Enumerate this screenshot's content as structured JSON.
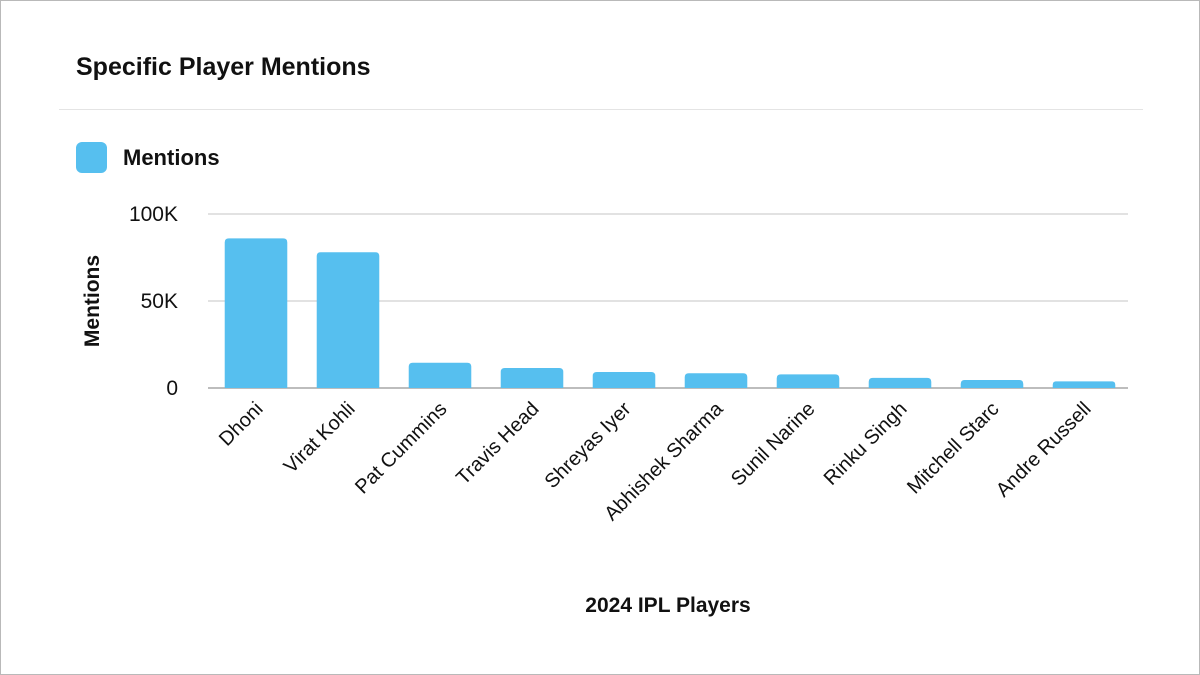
{
  "card": {
    "title": "Specific Player Mentions"
  },
  "colors": {
    "bar": "#56BFEF",
    "grid": "#d9d9d9",
    "axis": "#bdbdbd",
    "text": "#111111"
  },
  "chart_data": {
    "type": "bar",
    "title": "Specific Player Mentions",
    "xlabel": "2024 IPL Players",
    "ylabel": "Mentions",
    "ylim": [
      0,
      100000
    ],
    "yticks": [
      0,
      50000,
      100000
    ],
    "ytick_labels": [
      "0",
      "50K",
      "100K"
    ],
    "grid": true,
    "legend": "top-left",
    "categories": [
      "Dhoni",
      "Virat Kohli",
      "Pat Cummins",
      "Travis Head",
      "Shreyas Iyer",
      "Abhishek Sharma",
      "Sunil Narine",
      "Rinku Singh",
      "Mitchell Starc",
      "Andre Russell"
    ],
    "series": [
      {
        "name": "Mentions",
        "values": [
          86000,
          78000,
          14500,
          11500,
          9200,
          8500,
          7800,
          5800,
          4600,
          3800
        ]
      }
    ]
  }
}
